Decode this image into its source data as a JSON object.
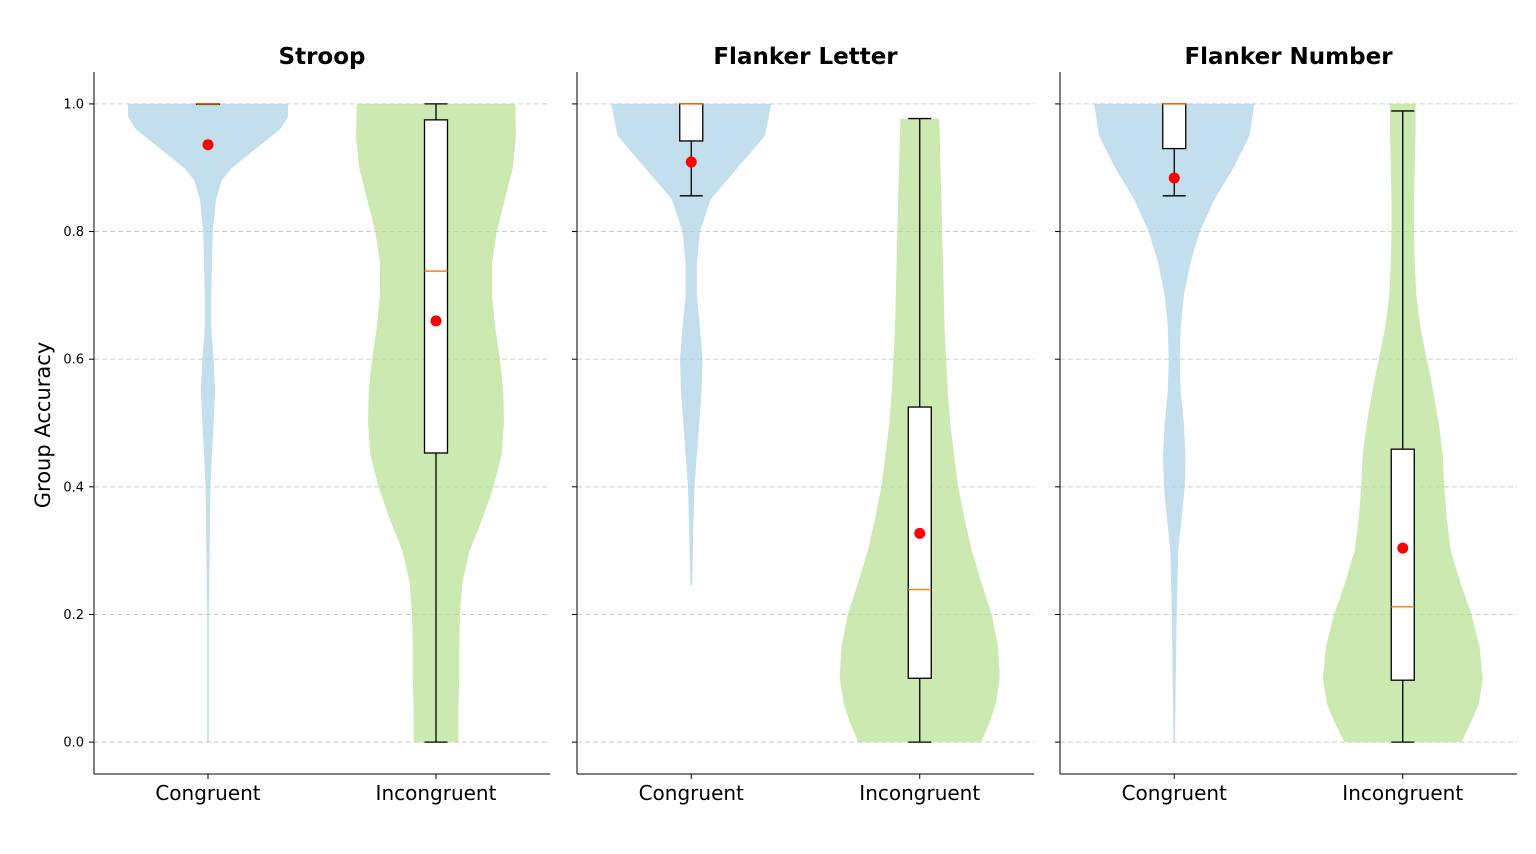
{
  "chart_data": {
    "type": "violin",
    "ylabel": "Group Accuracy",
    "ylim": [
      -0.05,
      1.05
    ],
    "yticks": [
      "0.0",
      "0.2",
      "0.4",
      "0.6",
      "0.8",
      "1.0"
    ],
    "ytick_values": [
      0.0,
      0.2,
      0.4,
      0.6,
      0.8,
      1.0
    ],
    "grid": "y-dashed",
    "sharey": true,
    "categories": [
      "Congruent",
      "Incongruent"
    ],
    "colors": {
      "Congruent": "#a6cee3",
      "Incongruent": "#b2df8a",
      "mean_marker": "#ff0000",
      "median": "#ff7f0e"
    },
    "panels": [
      {
        "title": "Stroop",
        "groups": [
          {
            "category": "Congruent",
            "box": {
              "whislo": 1.0,
              "q1": 1.0,
              "median": 1.0,
              "q3": 1.0,
              "whishi": 1.0
            },
            "mean": 0.936,
            "violin": {
              "y": [
                0.0,
                0.1,
                0.2,
                0.3,
                0.4,
                0.45,
                0.5,
                0.55,
                0.6,
                0.65,
                0.7,
                0.75,
                0.8,
                0.85,
                0.88,
                0.9,
                0.93,
                0.96,
                0.98,
                1.0
              ],
              "w": [
                0.01,
                0.01,
                0.01,
                0.02,
                0.03,
                0.05,
                0.07,
                0.09,
                0.07,
                0.04,
                0.04,
                0.05,
                0.06,
                0.1,
                0.17,
                0.3,
                0.6,
                0.9,
                1.0,
                1.0
              ]
            }
          },
          {
            "category": "Incongruent",
            "box": {
              "whislo": 0.0,
              "q1": 0.453,
              "median": 0.738,
              "q3": 0.975,
              "whishi": 1.0
            },
            "mean": 0.66,
            "violin": {
              "y": [
                0.0,
                0.05,
                0.1,
                0.15,
                0.2,
                0.25,
                0.3,
                0.35,
                0.4,
                0.45,
                0.5,
                0.55,
                0.6,
                0.65,
                0.7,
                0.75,
                0.8,
                0.85,
                0.9,
                0.95,
                1.0
              ],
              "w": [
                0.28,
                0.28,
                0.29,
                0.29,
                0.3,
                0.33,
                0.42,
                0.58,
                0.72,
                0.82,
                0.85,
                0.84,
                0.8,
                0.74,
                0.7,
                0.7,
                0.76,
                0.86,
                0.96,
                1.0,
                0.99
              ]
            }
          }
        ]
      },
      {
        "title": "Flanker Letter",
        "groups": [
          {
            "category": "Congruent",
            "box": {
              "whislo": 0.856,
              "q1": 0.942,
              "median": 1.0,
              "q3": 1.0,
              "whishi": 1.0
            },
            "mean": 0.909,
            "violin": {
              "y": [
                0.246,
                0.3,
                0.35,
                0.4,
                0.45,
                0.5,
                0.55,
                0.6,
                0.65,
                0.7,
                0.75,
                0.8,
                0.85,
                0.9,
                0.95,
                1.0
              ],
              "w": [
                0.01,
                0.02,
                0.03,
                0.04,
                0.07,
                0.1,
                0.13,
                0.14,
                0.11,
                0.07,
                0.07,
                0.11,
                0.24,
                0.58,
                0.92,
                1.0
              ]
            }
          },
          {
            "category": "Incongruent",
            "box": {
              "whislo": 0.0,
              "q1": 0.1,
              "median": 0.239,
              "q3": 0.525,
              "whishi": 0.977
            },
            "mean": 0.327,
            "violin": {
              "y": [
                0.0,
                0.03,
                0.06,
                0.1,
                0.15,
                0.2,
                0.25,
                0.3,
                0.35,
                0.4,
                0.45,
                0.5,
                0.55,
                0.6,
                0.65,
                0.7,
                0.75,
                0.8,
                0.85,
                0.9,
                0.95,
                0.977
              ],
              "w": [
                0.77,
                0.87,
                0.95,
                1.0,
                0.98,
                0.9,
                0.77,
                0.65,
                0.56,
                0.48,
                0.43,
                0.38,
                0.35,
                0.33,
                0.31,
                0.3,
                0.29,
                0.28,
                0.27,
                0.26,
                0.25,
                0.24
              ]
            }
          }
        ]
      },
      {
        "title": "Flanker Number",
        "groups": [
          {
            "category": "Congruent",
            "box": {
              "whislo": 0.856,
              "q1": 0.93,
              "median": 1.0,
              "q3": 1.0,
              "whishi": 1.0
            },
            "mean": 0.884,
            "violin": {
              "y": [
                0.0,
                0.1,
                0.2,
                0.3,
                0.35,
                0.4,
                0.45,
                0.5,
                0.55,
                0.6,
                0.65,
                0.7,
                0.75,
                0.8,
                0.85,
                0.9,
                0.95,
                1.0
              ],
              "w": [
                0.01,
                0.02,
                0.03,
                0.05,
                0.09,
                0.13,
                0.14,
                0.12,
                0.08,
                0.07,
                0.08,
                0.12,
                0.2,
                0.32,
                0.5,
                0.74,
                0.94,
                1.0
              ]
            }
          },
          {
            "category": "Incongruent",
            "box": {
              "whislo": 0.0,
              "q1": 0.097,
              "median": 0.212,
              "q3": 0.459,
              "whishi": 0.989
            },
            "mean": 0.304,
            "violin": {
              "y": [
                0.0,
                0.03,
                0.06,
                0.1,
                0.15,
                0.2,
                0.25,
                0.3,
                0.35,
                0.4,
                0.45,
                0.5,
                0.55,
                0.6,
                0.65,
                0.7,
                0.75,
                0.8,
                0.85,
                0.9,
                0.95,
                1.0
              ],
              "w": [
                0.73,
                0.85,
                0.95,
                1.0,
                0.96,
                0.86,
                0.72,
                0.6,
                0.55,
                0.52,
                0.5,
                0.45,
                0.38,
                0.3,
                0.22,
                0.17,
                0.15,
                0.14,
                0.14,
                0.15,
                0.16,
                0.16
              ]
            }
          }
        ]
      }
    ]
  }
}
